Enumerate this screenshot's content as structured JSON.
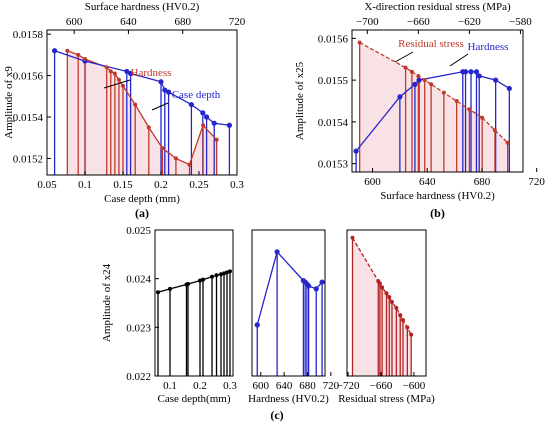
{
  "colors": {
    "hardness": "#c0392b",
    "case_depth": "#2626cc",
    "residual": "#c0392b",
    "bars_c1": "#000000",
    "bars_c3": "#b22222",
    "fill": "#f6d5dc"
  },
  "chart_data": [
    {
      "id": "a",
      "type": "line",
      "panel_label": "(a)",
      "title": "",
      "xlabel_bottom": "Case depth (mm)",
      "xlabel_top": "Surface hardness (HV0.2)",
      "ylabel": "Amplitude of x9",
      "xlim_bottom": [
        0.05,
        0.3
      ],
      "xticks_bottom": [
        "0.05",
        "0.1",
        "0.15",
        "0.2",
        "0.25",
        "0.3"
      ],
      "xlim_top": [
        580,
        720
      ],
      "xticks_top": [
        "600",
        "640",
        "680",
        "720"
      ],
      "ylim": [
        0.01512,
        0.01582
      ],
      "yticks": [
        "0.0158",
        "0.0156",
        "0.0154",
        "0.0152"
      ],
      "series": [
        {
          "name": "Hardness",
          "axis": "top",
          "color": "red",
          "x": [
            595,
            603,
            608,
            624,
            627,
            630,
            633,
            636,
            645,
            655,
            665,
            675,
            685,
            695,
            705
          ],
          "y": [
            0.01572,
            0.0157,
            0.01568,
            0.01564,
            0.01562,
            0.01561,
            0.01558,
            0.01555,
            0.01546,
            0.01535,
            0.01525,
            0.0152,
            0.01517,
            0.01536,
            0.01529
          ]
        },
        {
          "name": "Case depth",
          "axis": "bottom",
          "color": "blue",
          "x": [
            0.06,
            0.1,
            0.155,
            0.16,
            0.2,
            0.205,
            0.21,
            0.24,
            0.255,
            0.26,
            0.27,
            0.29
          ],
          "y": [
            0.01572,
            0.01567,
            0.01562,
            0.01561,
            0.01557,
            0.01553,
            0.01552,
            0.01546,
            0.01542,
            0.0154,
            0.01537,
            0.01536
          ]
        }
      ],
      "annotations": [
        "Hardness",
        "Case depth"
      ]
    },
    {
      "id": "b",
      "type": "line",
      "panel_label": "(b)",
      "xlabel_bottom": "Surface hardness (HV0.2)",
      "xlabel_top": "X-direction residual stress (MPa)",
      "ylabel": "Amplitude of x25",
      "xlim_bottom": [
        585,
        710
      ],
      "xticks_bottom": [
        "600",
        "640",
        "680",
        "720"
      ],
      "xlim_top": [
        -712,
        -578
      ],
      "xticks_top": [
        "−700",
        "−660",
        "−620",
        "−580"
      ],
      "ylim": [
        0.01528,
        0.01562
      ],
      "yticks": [
        "0.0156",
        "0.0155",
        "0.0154",
        "0.0153"
      ],
      "series": [
        {
          "name": "Hardness",
          "axis": "bottom",
          "color": "blue",
          "x": [
            588,
            620,
            631,
            634,
            666,
            668,
            672,
            676,
            678,
            690,
            700
          ],
          "y": [
            0.01533,
            0.01546,
            0.01549,
            0.0155,
            0.01552,
            0.01552,
            0.01552,
            0.01552,
            0.01551,
            0.0155,
            0.01548
          ]
        },
        {
          "name": "Residual stress",
          "axis": "top",
          "color": "red",
          "x": [
            -706,
            -670,
            -665,
            -660,
            -655,
            -650,
            -640,
            -630,
            -620,
            -610,
            -600,
            -590
          ],
          "y": [
            0.01559,
            0.01553,
            0.01552,
            0.01551,
            0.0155,
            0.01549,
            0.01547,
            0.01545,
            0.01543,
            0.01541,
            0.01538,
            0.01535
          ]
        }
      ],
      "annotations": [
        "Residual stress",
        "Hardness"
      ]
    },
    {
      "id": "c1",
      "type": "line",
      "panel_label": "(c)",
      "xlabel": "Case depth(mm)",
      "ylabel": "Amplitude of x24",
      "xlim": [
        0.05,
        0.31
      ],
      "xticks": [
        "0.1",
        "0.2",
        "0.3"
      ],
      "ylim": [
        0.022,
        0.025
      ],
      "yticks": [
        "0.025",
        "0.024",
        "0.023",
        "0.022"
      ],
      "series": [
        {
          "x": [
            0.06,
            0.1,
            0.155,
            0.16,
            0.2,
            0.21,
            0.24,
            0.255,
            0.27,
            0.28,
            0.29,
            0.3
          ],
          "y": [
            0.02372,
            0.02379,
            0.02388,
            0.02389,
            0.02396,
            0.02398,
            0.02404,
            0.02407,
            0.02409,
            0.02411,
            0.02413,
            0.02415
          ]
        }
      ]
    },
    {
      "id": "c2",
      "type": "line",
      "xlabel": "Hardness (HV0.2)",
      "xlim": [
        585,
        710
      ],
      "xticks": [
        "600",
        "640",
        "680",
        "720"
      ],
      "ylim": [
        0.022,
        0.025
      ],
      "series": [
        {
          "x": [
            594,
            628,
            673,
            676,
            679,
            682,
            695,
            705
          ],
          "y": [
            0.02305,
            0.02455,
            0.02396,
            0.02393,
            0.02389,
            0.02385,
            0.02379,
            0.02393
          ]
        }
      ]
    },
    {
      "id": "c3",
      "type": "line",
      "xlabel": "Residual stress (MPa)",
      "xlim": [
        -722,
        -578
      ],
      "xticks": [
        "−720",
        "−660",
        "−600"
      ],
      "ylim": [
        0.022,
        0.025
      ],
      "series": [
        {
          "x": [
            -712,
            -665,
            -662,
            -658,
            -650,
            -645,
            -640,
            -632,
            -625,
            -620,
            -612,
            -605
          ],
          "y": [
            0.02484,
            0.02395,
            0.0239,
            0.02382,
            0.0237,
            0.02362,
            0.02352,
            0.0234,
            0.02325,
            0.02315,
            0.023,
            0.02285
          ]
        }
      ]
    }
  ]
}
